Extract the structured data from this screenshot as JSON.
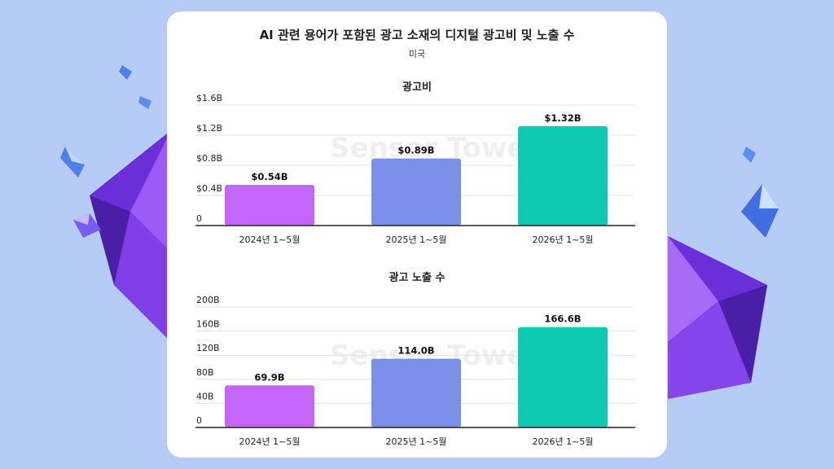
{
  "title": "AI 관련 용어가 포함된 광고 소재의 디지털 광고비 및 노출 수",
  "subtitle": "미국",
  "watermark": "Sensor Tower",
  "colors": {
    "bar_2024": "#c466f7",
    "bar_2025": "#7a8fe8",
    "bar_2026": "#0fc9b2"
  },
  "chart_data": [
    {
      "type": "bar",
      "title": "광고비",
      "categories": [
        "2024년 1~5월",
        "2025년 1~5월",
        "2026년 1~5월"
      ],
      "values": [
        0.54,
        0.89,
        1.32
      ],
      "data_labels": [
        "$0.54B",
        "$0.89B",
        "$1.32B"
      ],
      "yticks": [
        "0",
        "$0.4B",
        "$0.8B",
        "$1.2B",
        "$1.6B"
      ],
      "ylim": [
        0,
        1.6
      ],
      "grid": true
    },
    {
      "type": "bar",
      "title": "광고 노출 수",
      "categories": [
        "2024년 1~5월",
        "2025년 1~5월",
        "2026년 1~5월"
      ],
      "values": [
        69.9,
        114.0,
        166.6
      ],
      "data_labels": [
        "69.9B",
        "114.0B",
        "166.6B"
      ],
      "yticks": [
        "0",
        "40B",
        "80B",
        "120B",
        "160B",
        "200B"
      ],
      "ylim": [
        0,
        200
      ],
      "grid": true
    }
  ]
}
